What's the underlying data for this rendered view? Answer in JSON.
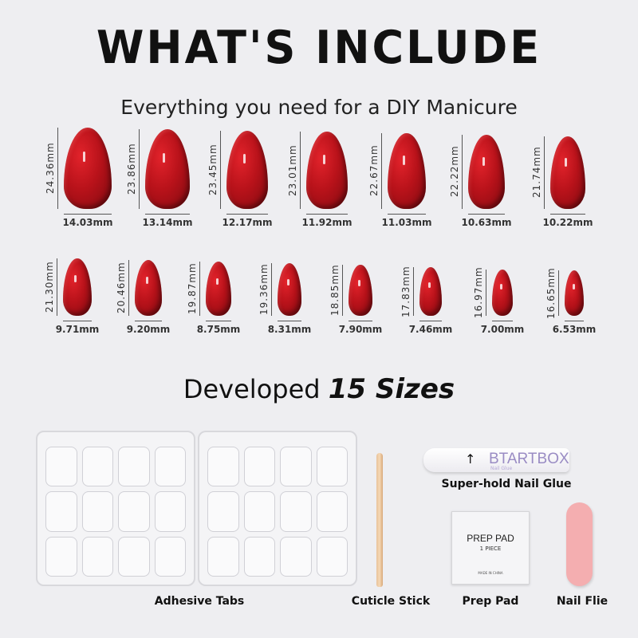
{
  "title": "WHAT'S INCLUDE",
  "subtitle": "Everything you need for a DIY Manicure",
  "nails": {
    "row1": [
      {
        "length": "24.36mm",
        "width": "14.03mm",
        "l": 24.36,
        "w": 14.03
      },
      {
        "length": "23.86mm",
        "width": "13.14mm",
        "l": 23.86,
        "w": 13.14
      },
      {
        "length": "23.45mm",
        "width": "12.17mm",
        "l": 23.45,
        "w": 12.17
      },
      {
        "length": "23.01mm",
        "width": "11.92mm",
        "l": 23.01,
        "w": 11.92
      },
      {
        "length": "22.67mm",
        "width": "11.03mm",
        "l": 22.67,
        "w": 11.03
      },
      {
        "length": "22.22mm",
        "width": "10.63mm",
        "l": 22.22,
        "w": 10.63
      },
      {
        "length": "21.74mm",
        "width": "10.22mm",
        "l": 21.74,
        "w": 10.22
      }
    ],
    "row2": [
      {
        "length": "21.30mm",
        "width": "9.71mm",
        "l": 21.3,
        "w": 9.71
      },
      {
        "length": "20.46mm",
        "width": "9.20mm",
        "l": 20.46,
        "w": 9.2
      },
      {
        "length": "19.87mm",
        "width": "8.75mm",
        "l": 19.87,
        "w": 8.75
      },
      {
        "length": "19.36mm",
        "width": "8.31mm",
        "l": 19.36,
        "w": 8.31
      },
      {
        "length": "18.85mm",
        "width": "7.90mm",
        "l": 18.85,
        "w": 7.9
      },
      {
        "length": "17.83mm",
        "width": "7.46mm",
        "l": 17.83,
        "w": 7.46
      },
      {
        "length": "16.97mm",
        "width": "7.00mm",
        "l": 16.97,
        "w": 7.0
      },
      {
        "length": "16.65mm",
        "width": "6.53mm",
        "l": 16.65,
        "w": 6.53
      }
    ],
    "color": "#b8121a"
  },
  "developed": {
    "prefix": "Developed",
    "emphasis": "15 Sizes"
  },
  "items": {
    "adhesive_tabs": "Adhesive Tabs",
    "cuticle_stick": "Cuticle Stick",
    "glue": "Super-hold Nail Glue",
    "glue_brand": "BTARTBOX",
    "glue_sub": "Nail Glue",
    "prep_pad": "Prep Pad",
    "prep_pad_title": "PREP PAD",
    "prep_pad_qty": "1 PIECE",
    "prep_pad_origin": "MADE IN CHINA",
    "nail_file": "Nail Flie",
    "file_color": "#f4aeb0"
  }
}
